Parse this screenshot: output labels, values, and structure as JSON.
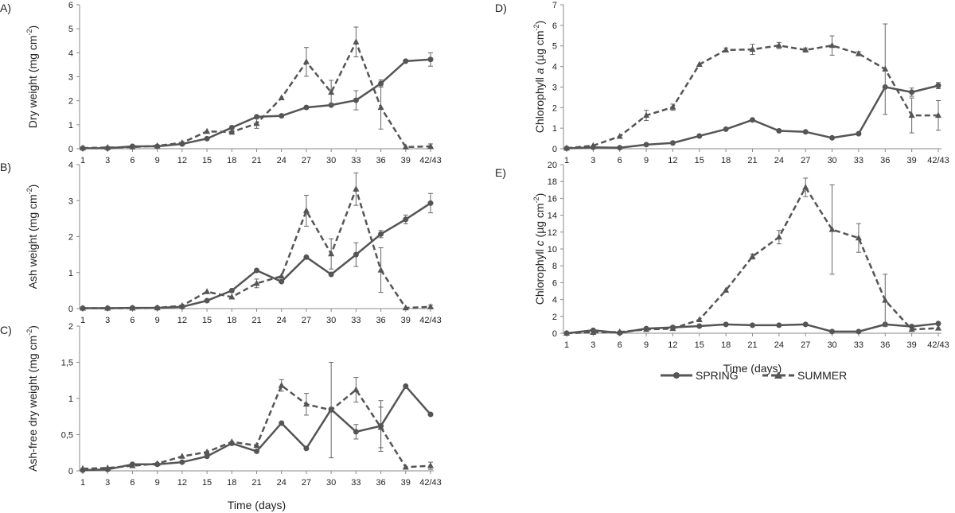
{
  "chart_data": [
    {
      "id": "A",
      "type": "line",
      "panel_label": "A)",
      "ylabel_pre": "Dry weight (mg cm",
      "ylabel_sup": "-2",
      "ylabel_post": ")",
      "ylabel_italic": "",
      "xlabel": "",
      "categories": [
        "1",
        "3",
        "6",
        "9",
        "12",
        "15",
        "18",
        "21",
        "24",
        "27",
        "30",
        "33",
        "36",
        "39",
        "42/43"
      ],
      "ylim": [
        0,
        6
      ],
      "yticks": [
        0,
        1,
        2,
        3,
        4,
        5,
        6
      ],
      "ytick_labels": [
        "0",
        "1",
        "2",
        "3",
        "4",
        "5",
        "6"
      ],
      "series": [
        {
          "name": "SPRING",
          "values": [
            0.02,
            0.02,
            0.1,
            0.1,
            0.2,
            0.42,
            0.88,
            1.33,
            1.37,
            1.72,
            1.82,
            2.02,
            2.72,
            3.65,
            3.72
          ],
          "errors": [
            0,
            0,
            0,
            0,
            0,
            0,
            0,
            0,
            0,
            0,
            0,
            0.4,
            0.15,
            0,
            0.28
          ]
        },
        {
          "name": "SUMMER",
          "values": [
            0.03,
            0.05,
            0.07,
            0.12,
            0.25,
            0.72,
            0.7,
            1.05,
            2.12,
            3.62,
            2.35,
            4.45,
            1.72,
            0.07,
            0.1
          ],
          "errors": [
            0,
            0,
            0,
            0,
            0,
            0,
            0.1,
            0.2,
            0,
            0.6,
            0.5,
            0.62,
            0.9,
            0,
            0.1
          ]
        }
      ]
    },
    {
      "id": "B",
      "type": "line",
      "panel_label": "B)",
      "ylabel_pre": "Ash weight (mg cm",
      "ylabel_sup": "-2",
      "ylabel_post": ")",
      "ylabel_italic": "",
      "xlabel": "",
      "categories": [
        "1",
        "3",
        "6",
        "9",
        "12",
        "15",
        "18",
        "21",
        "24",
        "27",
        "30",
        "33",
        "36",
        "39",
        "42/43"
      ],
      "ylim": [
        0,
        4
      ],
      "yticks": [
        0,
        1,
        2,
        3,
        4
      ],
      "ytick_labels": [
        "0",
        "1",
        "2",
        "3",
        "4"
      ],
      "series": [
        {
          "name": "SPRING",
          "values": [
            0.01,
            0.01,
            0.02,
            0.02,
            0.05,
            0.22,
            0.5,
            1.06,
            0.75,
            1.43,
            0.95,
            1.5,
            2.07,
            2.48,
            2.93
          ],
          "errors": [
            0,
            0,
            0,
            0,
            0,
            0,
            0,
            0,
            0,
            0,
            0,
            0.33,
            0.1,
            0.12,
            0.27
          ]
        },
        {
          "name": "SUMMER",
          "values": [
            0.01,
            0.01,
            0.01,
            0.02,
            0.08,
            0.47,
            0.32,
            0.7,
            0.9,
            2.72,
            1.52,
            3.32,
            1.07,
            0.02,
            0.05
          ],
          "errors": [
            0,
            0,
            0,
            0,
            0,
            0,
            0,
            0.12,
            0,
            0.43,
            0.42,
            0.45,
            0.62,
            0,
            0.05
          ]
        }
      ]
    },
    {
      "id": "C",
      "type": "line",
      "panel_label": "C)",
      "ylabel_pre": "Ash-free dry weight (mg cm",
      "ylabel_sup": "-2",
      "ylabel_post": ")",
      "ylabel_italic": "",
      "xlabel": "Time (days)",
      "categories": [
        "1",
        "3",
        "6",
        "9",
        "12",
        "15",
        "18",
        "21",
        "24",
        "27",
        "30",
        "33",
        "36",
        "39",
        "42/43"
      ],
      "ylim": [
        0,
        2
      ],
      "yticks": [
        0,
        0.5,
        1,
        1.5,
        2
      ],
      "ytick_labels": [
        "0",
        "0,5",
        "1",
        "1,5",
        "2"
      ],
      "series": [
        {
          "name": "SPRING",
          "values": [
            0.01,
            0.02,
            0.09,
            0.09,
            0.12,
            0.2,
            0.38,
            0.27,
            0.66,
            0.31,
            0.85,
            0.54,
            0.62,
            1.17,
            0.78
          ],
          "errors": [
            0,
            0,
            0,
            0,
            0,
            0,
            0,
            0,
            0,
            0,
            0,
            0.1,
            0.35,
            0,
            0
          ]
        },
        {
          "name": "SUMMER",
          "values": [
            0.03,
            0.04,
            0.07,
            0.1,
            0.2,
            0.26,
            0.4,
            0.35,
            1.18,
            0.92,
            0.84,
            1.12,
            0.6,
            0.05,
            0.07
          ],
          "errors": [
            0,
            0,
            0,
            0,
            0,
            0,
            0,
            0,
            0.08,
            0.15,
            0.66,
            0.17,
            0.28,
            0,
            0.05
          ]
        }
      ]
    },
    {
      "id": "D",
      "type": "line",
      "panel_label": "D)",
      "ylabel_pre": "Chlorophyll ",
      "ylabel_italic": "a",
      "ylabel_sup": "-2",
      "ylabel_post": ")",
      "ylabel_unit": " (µg cm",
      "xlabel": "",
      "categories": [
        "1",
        "3",
        "6",
        "9",
        "12",
        "15",
        "18",
        "21",
        "24",
        "27",
        "30",
        "33",
        "36",
        "39",
        "42/43"
      ],
      "ylim": [
        0,
        7
      ],
      "yticks": [
        0,
        1,
        2,
        3,
        4,
        5,
        6,
        7
      ],
      "ytick_labels": [
        "0",
        "1",
        "2",
        "3",
        "4",
        "5",
        "6",
        "7"
      ],
      "series": [
        {
          "name": "SPRING",
          "values": [
            0.02,
            0.07,
            0.05,
            0.2,
            0.28,
            0.62,
            0.95,
            1.4,
            0.87,
            0.82,
            0.53,
            0.73,
            3.0,
            2.75,
            3.07
          ],
          "errors": [
            0,
            0,
            0,
            0,
            0,
            0,
            0,
            0,
            0,
            0,
            0,
            0,
            0,
            0.2,
            0.15
          ]
        },
        {
          "name": "SUMMER",
          "values": [
            0.03,
            0.15,
            0.6,
            1.62,
            2.02,
            4.1,
            4.8,
            4.83,
            5.02,
            4.8,
            5.02,
            4.62,
            3.87,
            1.62,
            1.62
          ],
          "errors": [
            0,
            0,
            0,
            0.25,
            0.15,
            0,
            0.1,
            0.25,
            0.15,
            0.1,
            0.47,
            0.1,
            2.2,
            0.85,
            0.72
          ]
        }
      ]
    },
    {
      "id": "E",
      "type": "line",
      "panel_label": "E)",
      "ylabel_pre": "Chlorophyll ",
      "ylabel_italic": "c",
      "ylabel_sup": "-2",
      "ylabel_post": ")",
      "ylabel_unit": " (µg cm",
      "xlabel": "Time (days)",
      "categories": [
        "1",
        "3",
        "6",
        "9",
        "12",
        "15",
        "18",
        "21",
        "24",
        "27",
        "30",
        "33",
        "36",
        "39",
        "42/43"
      ],
      "ylim": [
        0,
        20
      ],
      "yticks": [
        0,
        2,
        4,
        6,
        8,
        10,
        12,
        14,
        16,
        18,
        20
      ],
      "ytick_labels": [
        "0",
        "2",
        "4",
        "6",
        "8",
        "10",
        "12",
        "14",
        "16",
        "18",
        "20"
      ],
      "series": [
        {
          "name": "SPRING",
          "values": [
            0.0,
            0.35,
            0.05,
            0.55,
            0.7,
            0.85,
            1.05,
            0.95,
            0.95,
            1.05,
            0.2,
            0.2,
            1.05,
            0.8,
            1.15
          ],
          "errors": [
            0,
            0,
            0,
            0,
            0,
            0,
            0,
            0,
            0,
            0,
            0,
            0,
            0,
            0,
            0
          ]
        },
        {
          "name": "SUMMER",
          "values": [
            0.0,
            0.1,
            0.15,
            0.45,
            0.55,
            1.6,
            5.1,
            9.1,
            11.4,
            17.3,
            12.3,
            11.3,
            3.9,
            0.45,
            0.6
          ],
          "errors": [
            0,
            0,
            0,
            0,
            0,
            0,
            0,
            0.3,
            0.8,
            1.1,
            5.3,
            1.7,
            3.1,
            0,
            0
          ]
        }
      ]
    }
  ],
  "legend": {
    "items": [
      {
        "label": "SPRING",
        "marker": "circle",
        "dash": "solid"
      },
      {
        "label": "SUMMER",
        "marker": "triangle",
        "dash": "dashed"
      }
    ],
    "placement": "bottom-right"
  },
  "colors": {
    "line": "#555555",
    "axis": "#8a8a8a",
    "error": "#666666",
    "text": "#222222"
  }
}
